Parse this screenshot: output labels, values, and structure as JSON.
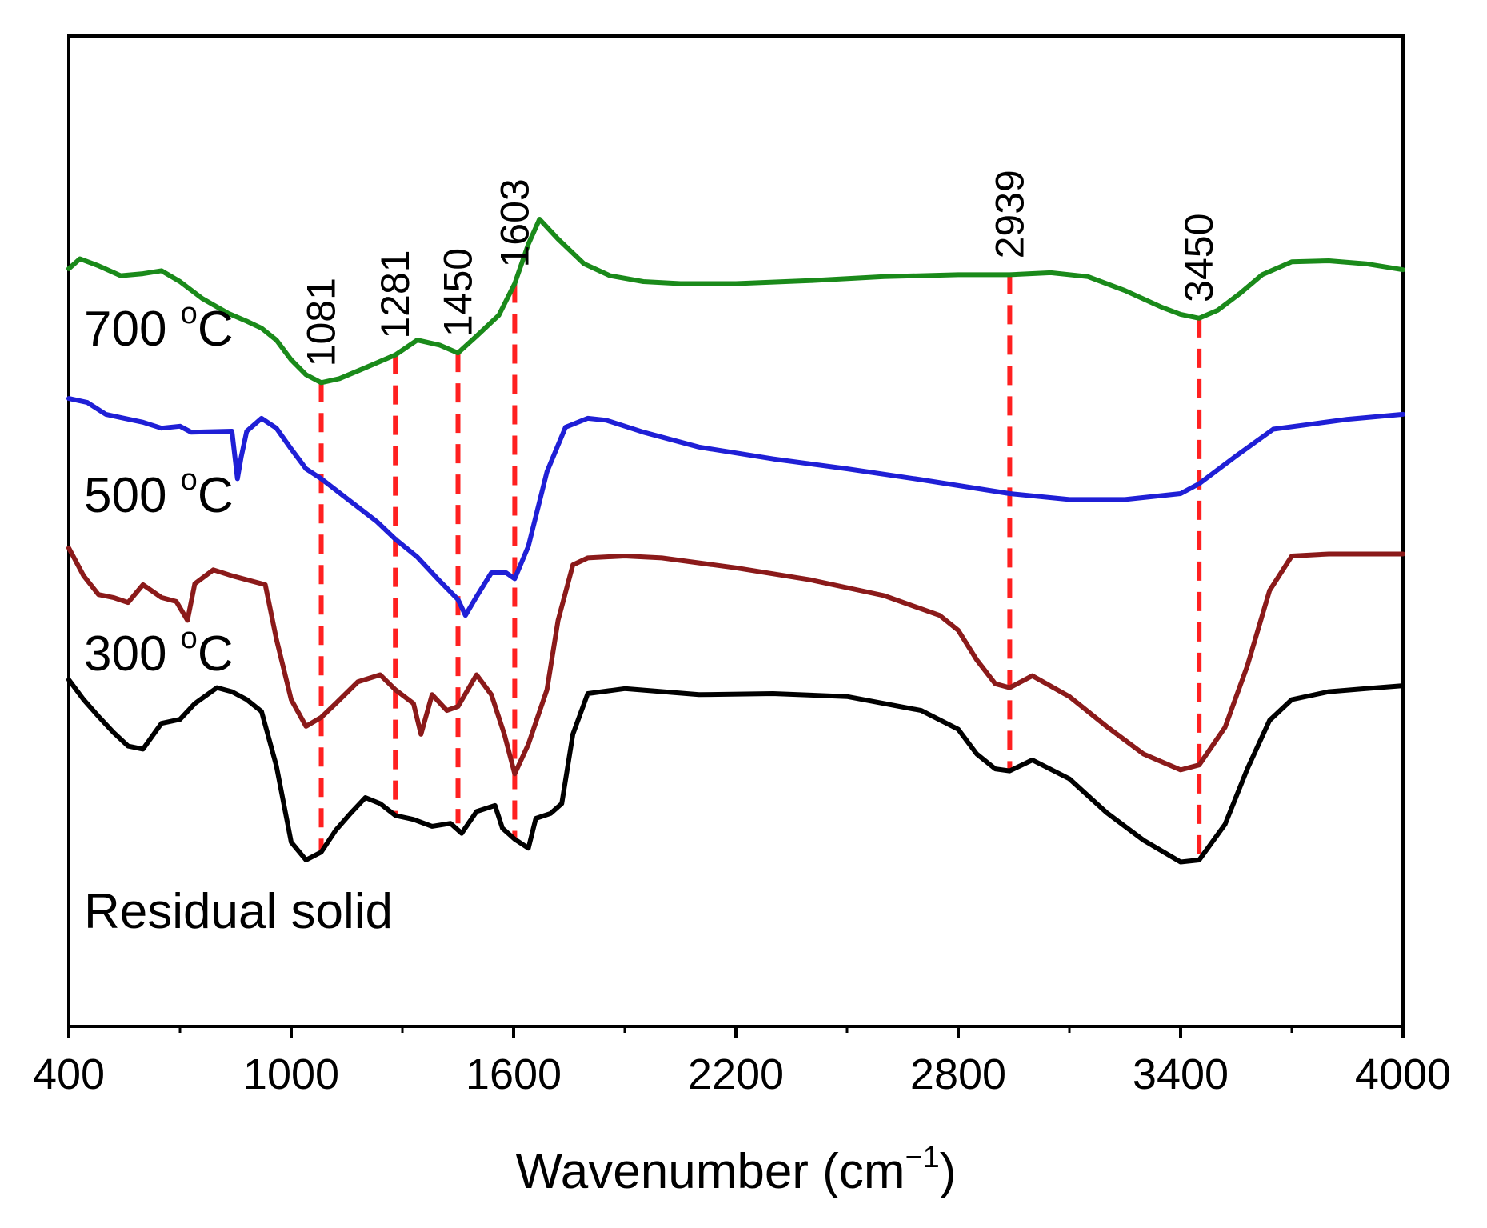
{
  "chart_data": {
    "type": "line",
    "title": "",
    "xlabel": "Wavenumber (cm",
    "xlabel_sup": "−1",
    "xlabel_close": ")",
    "ylabel": "",
    "xlim": [
      400,
      4000
    ],
    "ylim": [
      0,
      100
    ],
    "xticks_major": [
      400,
      1000,
      1600,
      2200,
      2800,
      3400,
      4000
    ],
    "xtick_labels": [
      "400",
      "1000",
      "1600",
      "2200",
      "2800",
      "3400",
      "4000"
    ],
    "xticks_minor": [
      700,
      1300,
      1900,
      2500,
      3100,
      3700
    ],
    "series": [
      {
        "name": "700 °C",
        "label_text": "700 ",
        "label_sup": "o",
        "label_unit": "C",
        "color": "#1a8a1a",
        "points": [
          [
            400,
            76.5
          ],
          [
            430,
            77.5
          ],
          [
            480,
            76.8
          ],
          [
            540,
            75.8
          ],
          [
            600,
            76.0
          ],
          [
            650,
            76.3
          ],
          [
            700,
            75.2
          ],
          [
            760,
            73.5
          ],
          [
            830,
            72.0
          ],
          [
            880,
            71.2
          ],
          [
            920,
            70.5
          ],
          [
            960,
            69.3
          ],
          [
            1000,
            67.3
          ],
          [
            1040,
            65.8
          ],
          [
            1081,
            65.0
          ],
          [
            1130,
            65.4
          ],
          [
            1200,
            66.5
          ],
          [
            1281,
            67.8
          ],
          [
            1340,
            69.3
          ],
          [
            1400,
            68.8
          ],
          [
            1450,
            68.0
          ],
          [
            1500,
            69.7
          ],
          [
            1560,
            71.8
          ],
          [
            1603,
            75.0
          ],
          [
            1640,
            79.0
          ],
          [
            1670,
            81.5
          ],
          [
            1720,
            79.5
          ],
          [
            1790,
            77.0
          ],
          [
            1860,
            75.8
          ],
          [
            1950,
            75.2
          ],
          [
            2050,
            75.0
          ],
          [
            2200,
            75.0
          ],
          [
            2400,
            75.3
          ],
          [
            2600,
            75.7
          ],
          [
            2800,
            75.9
          ],
          [
            2939,
            75.9
          ],
          [
            3050,
            76.1
          ],
          [
            3150,
            75.7
          ],
          [
            3250,
            74.3
          ],
          [
            3350,
            72.6
          ],
          [
            3400,
            71.9
          ],
          [
            3450,
            71.5
          ],
          [
            3500,
            72.3
          ],
          [
            3560,
            74.0
          ],
          [
            3620,
            75.9
          ],
          [
            3700,
            77.2
          ],
          [
            3800,
            77.3
          ],
          [
            3900,
            77.0
          ],
          [
            4000,
            76.4
          ]
        ]
      },
      {
        "name": "500 °C",
        "label_text": "500 ",
        "label_sup": "o",
        "label_unit": "C",
        "color": "#1f1fd6",
        "points": [
          [
            400,
            63.4
          ],
          [
            450,
            63.0
          ],
          [
            500,
            61.8
          ],
          [
            550,
            61.4
          ],
          [
            600,
            61.0
          ],
          [
            650,
            60.4
          ],
          [
            700,
            60.6
          ],
          [
            730,
            60.0
          ],
          [
            840,
            60.1
          ],
          [
            855,
            55.3
          ],
          [
            865,
            57.5
          ],
          [
            880,
            60.1
          ],
          [
            920,
            61.4
          ],
          [
            960,
            60.4
          ],
          [
            1000,
            58.3
          ],
          [
            1040,
            56.3
          ],
          [
            1081,
            55.3
          ],
          [
            1150,
            53.3
          ],
          [
            1230,
            51.0
          ],
          [
            1281,
            49.2
          ],
          [
            1340,
            47.4
          ],
          [
            1400,
            45.0
          ],
          [
            1450,
            43.1
          ],
          [
            1470,
            41.5
          ],
          [
            1500,
            43.4
          ],
          [
            1540,
            45.8
          ],
          [
            1580,
            45.8
          ],
          [
            1603,
            45.2
          ],
          [
            1640,
            48.5
          ],
          [
            1690,
            56.0
          ],
          [
            1740,
            60.5
          ],
          [
            1800,
            61.4
          ],
          [
            1850,
            61.2
          ],
          [
            1950,
            60.0
          ],
          [
            2100,
            58.5
          ],
          [
            2300,
            57.3
          ],
          [
            2500,
            56.3
          ],
          [
            2700,
            55.2
          ],
          [
            2939,
            53.8
          ],
          [
            3100,
            53.2
          ],
          [
            3250,
            53.2
          ],
          [
            3400,
            53.8
          ],
          [
            3450,
            54.8
          ],
          [
            3550,
            57.6
          ],
          [
            3650,
            60.3
          ],
          [
            3750,
            60.8
          ],
          [
            3850,
            61.3
          ],
          [
            4000,
            61.8
          ]
        ]
      },
      {
        "name": "300 °C",
        "label_text": "300 ",
        "label_sup": "o",
        "label_unit": "C",
        "color": "#8b1a1a",
        "points": [
          [
            400,
            48.3
          ],
          [
            440,
            45.5
          ],
          [
            480,
            43.6
          ],
          [
            520,
            43.3
          ],
          [
            560,
            42.8
          ],
          [
            600,
            44.6
          ],
          [
            650,
            43.3
          ],
          [
            690,
            42.9
          ],
          [
            720,
            41.0
          ],
          [
            740,
            44.7
          ],
          [
            790,
            46.1
          ],
          [
            840,
            45.5
          ],
          [
            880,
            45.1
          ],
          [
            930,
            44.6
          ],
          [
            960,
            39.1
          ],
          [
            1000,
            33.0
          ],
          [
            1040,
            30.3
          ],
          [
            1081,
            31.2
          ],
          [
            1120,
            32.6
          ],
          [
            1180,
            34.8
          ],
          [
            1240,
            35.5
          ],
          [
            1281,
            34.0
          ],
          [
            1330,
            32.6
          ],
          [
            1350,
            29.5
          ],
          [
            1380,
            33.5
          ],
          [
            1420,
            31.9
          ],
          [
            1450,
            32.3
          ],
          [
            1500,
            35.5
          ],
          [
            1540,
            33.5
          ],
          [
            1575,
            29.5
          ],
          [
            1603,
            25.5
          ],
          [
            1640,
            28.5
          ],
          [
            1690,
            34.0
          ],
          [
            1720,
            41.0
          ],
          [
            1760,
            46.6
          ],
          [
            1800,
            47.3
          ],
          [
            1900,
            47.5
          ],
          [
            2000,
            47.3
          ],
          [
            2200,
            46.3
          ],
          [
            2400,
            45.1
          ],
          [
            2600,
            43.5
          ],
          [
            2750,
            41.5
          ],
          [
            2800,
            40.0
          ],
          [
            2850,
            37.0
          ],
          [
            2900,
            34.6
          ],
          [
            2939,
            34.2
          ],
          [
            3000,
            35.4
          ],
          [
            3100,
            33.3
          ],
          [
            3200,
            30.3
          ],
          [
            3300,
            27.5
          ],
          [
            3400,
            25.9
          ],
          [
            3450,
            26.4
          ],
          [
            3520,
            30.2
          ],
          [
            3580,
            36.4
          ],
          [
            3640,
            44.0
          ],
          [
            3700,
            47.5
          ],
          [
            3800,
            47.7
          ],
          [
            4000,
            47.7
          ]
        ]
      },
      {
        "name": "Residual solid",
        "label_text": "Residual solid",
        "label_sup": "",
        "label_unit": "",
        "color": "#000000",
        "points": [
          [
            400,
            35.0
          ],
          [
            440,
            33.0
          ],
          [
            480,
            31.3
          ],
          [
            520,
            29.7
          ],
          [
            560,
            28.3
          ],
          [
            600,
            28.0
          ],
          [
            650,
            30.6
          ],
          [
            700,
            31.0
          ],
          [
            740,
            32.6
          ],
          [
            800,
            34.2
          ],
          [
            840,
            33.8
          ],
          [
            880,
            33.0
          ],
          [
            920,
            31.8
          ],
          [
            960,
            26.3
          ],
          [
            1000,
            18.6
          ],
          [
            1040,
            16.8
          ],
          [
            1081,
            17.6
          ],
          [
            1120,
            19.8
          ],
          [
            1160,
            21.5
          ],
          [
            1200,
            23.1
          ],
          [
            1240,
            22.5
          ],
          [
            1281,
            21.3
          ],
          [
            1330,
            20.9
          ],
          [
            1380,
            20.2
          ],
          [
            1430,
            20.5
          ],
          [
            1460,
            19.5
          ],
          [
            1500,
            21.7
          ],
          [
            1550,
            22.3
          ],
          [
            1570,
            20.0
          ],
          [
            1603,
            18.9
          ],
          [
            1640,
            18.0
          ],
          [
            1660,
            21.0
          ],
          [
            1700,
            21.5
          ],
          [
            1730,
            22.5
          ],
          [
            1760,
            29.5
          ],
          [
            1800,
            33.6
          ],
          [
            1900,
            34.1
          ],
          [
            2100,
            33.5
          ],
          [
            2300,
            33.6
          ],
          [
            2500,
            33.3
          ],
          [
            2700,
            31.9
          ],
          [
            2800,
            30.0
          ],
          [
            2850,
            27.5
          ],
          [
            2900,
            26.0
          ],
          [
            2939,
            25.8
          ],
          [
            3000,
            26.9
          ],
          [
            3100,
            25.0
          ],
          [
            3200,
            21.6
          ],
          [
            3300,
            18.8
          ],
          [
            3400,
            16.6
          ],
          [
            3450,
            16.8
          ],
          [
            3520,
            20.4
          ],
          [
            3580,
            26.0
          ],
          [
            3640,
            30.9
          ],
          [
            3700,
            33.0
          ],
          [
            3800,
            33.8
          ],
          [
            3900,
            34.1
          ],
          [
            4000,
            34.4
          ]
        ]
      }
    ],
    "peak_markers": [
      {
        "label": "1081",
        "x": 1081,
        "y_low": 17.6,
        "y_high": 65.0
      },
      {
        "label": "1281",
        "x": 1281,
        "y_low": 21.3,
        "y_high": 67.8
      },
      {
        "label": "1450",
        "x": 1450,
        "y_low": 20.5,
        "y_high": 68.0
      },
      {
        "label": "1603",
        "x": 1603,
        "y_low": 18.9,
        "y_high": 75.0
      },
      {
        "label": "2939",
        "x": 2939,
        "y_low": 25.8,
        "y_high": 75.9
      },
      {
        "label": "3450",
        "x": 3450,
        "y_low": 16.8,
        "y_high": 71.5
      }
    ],
    "marker_color": "#ff2020",
    "grid": false,
    "legend": "inline labels left of curves"
  }
}
